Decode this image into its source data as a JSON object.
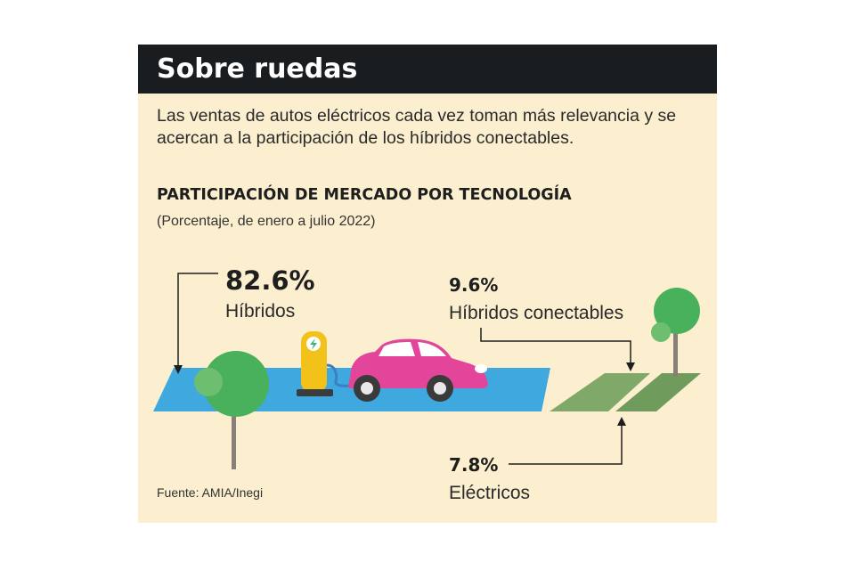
{
  "title": "Sobre ruedas",
  "subtitle": "Las ventas de autos eléctricos cada vez toman más relevancia y se acercan a la participación de los híbridos conectables.",
  "chart_data": {
    "type": "pie",
    "title": "PARTICIPACIÓN DE MERCADO POR TECNOLOGÍA",
    "subtitle": "(Porcentaje, de enero a julio 2022)",
    "categories": [
      "Híbridos",
      "Híbridos conectables",
      "Eléctricos"
    ],
    "values": [
      82.6,
      9.6,
      7.8
    ],
    "value_labels": [
      "82.6%",
      "9.6%",
      "7.8%"
    ]
  },
  "source": "Fuente: AMIA/Inegi",
  "colors": {
    "header": "#1a1d1f",
    "background": "#fbefd0",
    "hibridos": "#3fa9df",
    "conectables": "#7fa869",
    "electricos": "#6f9c5d",
    "car": "#e2459a",
    "charger": "#f2c21b",
    "tree": "#49b05c"
  }
}
